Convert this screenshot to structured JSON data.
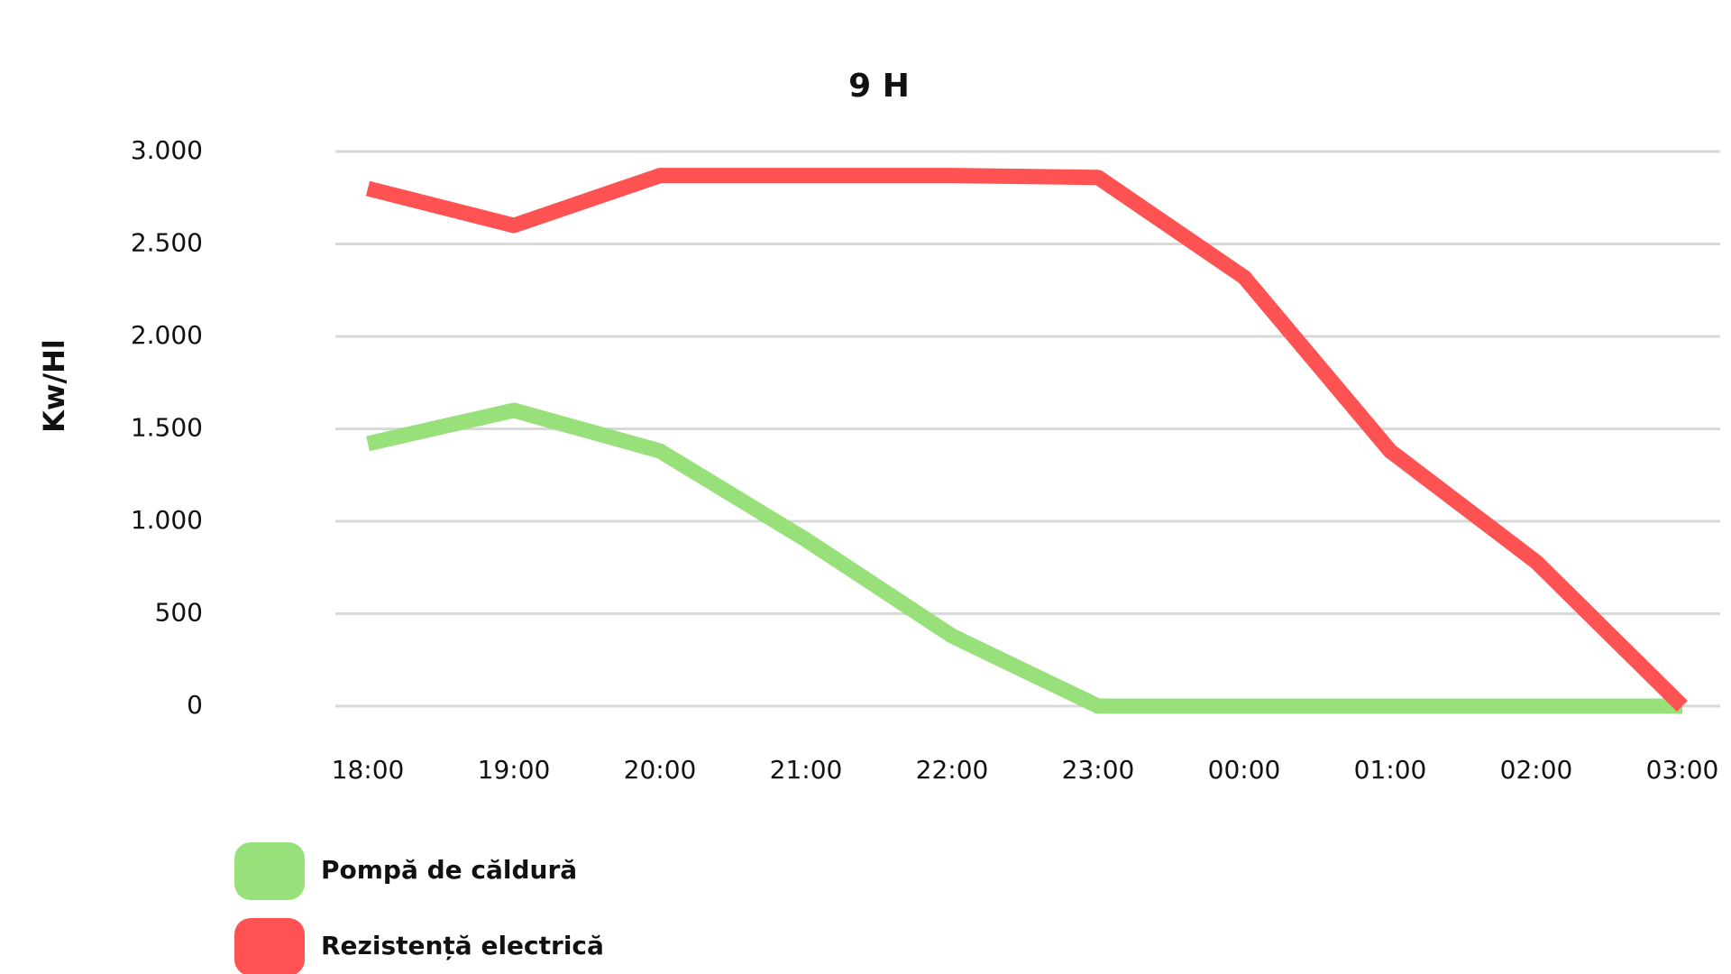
{
  "chart_data": {
    "type": "line",
    "title": "9 H",
    "y_label": "Kw/Hl",
    "categories": [
      "18:00",
      "19:00",
      "20:00",
      "21:00",
      "22:00",
      "23:00",
      "00:00",
      "01:00",
      "02:00",
      "03:00"
    ],
    "series": [
      {
        "name": "Pompă de căldură",
        "color": "#98e07a",
        "values": [
          1420,
          1600,
          1380,
          900,
          380,
          0,
          0,
          0,
          0,
          0
        ]
      },
      {
        "name": "Rezistență electrică",
        "color": "#ff5252",
        "values": [
          2800,
          2600,
          2870,
          2870,
          2870,
          2860,
          2320,
          1380,
          780,
          0
        ]
      }
    ],
    "ylim": [
      0,
      3000
    ],
    "yticks": [
      0,
      500,
      {
        "value": 1000,
        "label": "1.000"
      },
      {
        "value": 1500,
        "label": "1.500"
      },
      {
        "value": 2000,
        "label": "2.000"
      },
      {
        "value": 2500,
        "label": "2.500"
      },
      {
        "value": 3000,
        "label": "3.000"
      }
    ],
    "grid": true
  }
}
